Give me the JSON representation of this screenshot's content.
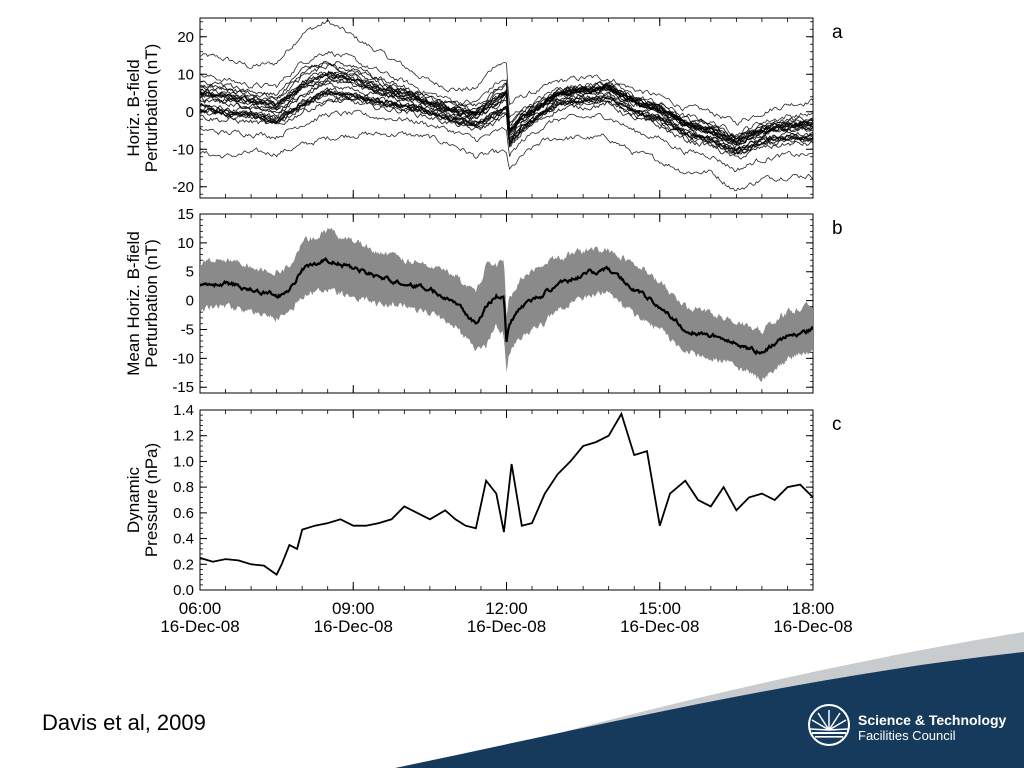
{
  "slide": {
    "citation": "Davis et al, 2009",
    "logo": {
      "line1": "Science & Technology",
      "line2": "Facilities Council",
      "icon": "sunburst-logo-icon"
    },
    "colors": {
      "footer_navy": "#163a5c",
      "footer_gray": "#c9ccce",
      "band_fill": "#8a8a8a",
      "line": "#000000"
    }
  },
  "chart_data": [
    {
      "panel": "a",
      "type": "line",
      "ylabel": [
        "Horiz. B-field",
        "Perturbation (nT)"
      ],
      "xlim": [
        6,
        18
      ],
      "ylim": [
        -23,
        25
      ],
      "yticks": [
        -20,
        -10,
        0,
        10,
        20
      ],
      "x": [
        6.0,
        6.5,
        7.0,
        7.5,
        8.0,
        8.5,
        9.0,
        9.5,
        10.0,
        10.5,
        11.0,
        11.4,
        11.8,
        12.0,
        12.05,
        12.3,
        12.7,
        13.0,
        13.5,
        14.0,
        14.5,
        15.0,
        15.5,
        16.0,
        16.5,
        17.0,
        17.5,
        18.0
      ],
      "series_mean": [
        3,
        2,
        1,
        -1,
        4,
        7,
        6,
        4,
        3,
        1,
        -1,
        -2,
        1,
        3,
        -7,
        -3,
        1,
        4,
        5,
        6,
        2,
        0,
        -4,
        -6,
        -9,
        -6,
        -5,
        -5
      ],
      "envelope_upper": [
        15,
        14,
        12,
        13,
        21,
        24,
        20,
        16,
        12,
        8,
        6,
        6,
        13,
        13,
        2,
        4,
        6,
        8,
        9,
        9,
        6,
        4,
        1,
        0,
        -3,
        0,
        2,
        3
      ],
      "envelope_lower": [
        -11,
        -12,
        -11,
        -11,
        -9,
        -7,
        -6,
        -6,
        -6,
        -7,
        -9,
        -12,
        -11,
        -11,
        -16,
        -12,
        -8,
        -7,
        -7,
        -7,
        -11,
        -13,
        -16,
        -16,
        -21,
        -18,
        -17,
        -17
      ],
      "annotation": "a"
    },
    {
      "panel": "b",
      "type": "area",
      "ylabel": [
        "Mean Horiz. B-field",
        "Perturbation (nT)"
      ],
      "xlim": [
        6,
        18
      ],
      "ylim": [
        -16,
        15
      ],
      "yticks": [
        -15,
        -10,
        -5,
        0,
        5,
        10,
        15
      ],
      "x": [
        6.0,
        6.5,
        7.0,
        7.5,
        7.75,
        8.0,
        8.5,
        9.0,
        9.5,
        10.0,
        10.5,
        11.0,
        11.4,
        11.6,
        11.8,
        11.95,
        12.0,
        12.05,
        12.3,
        12.7,
        13.0,
        13.5,
        14.0,
        14.5,
        15.0,
        15.5,
        16.0,
        16.5,
        17.0,
        17.5,
        18.0
      ],
      "mean": [
        2.5,
        3.0,
        2.0,
        1.0,
        1.5,
        5.5,
        7.0,
        5.5,
        4.0,
        3.0,
        2.0,
        0.0,
        -4.0,
        -1.0,
        1.0,
        0.5,
        -7.0,
        -4.0,
        -1.0,
        1.0,
        3.0,
        4.5,
        5.5,
        2.0,
        -1.0,
        -5.0,
        -6.0,
        -7.5,
        -9.0,
        -6.0,
        -5.0
      ],
      "upper": [
        6.5,
        7.0,
        6.0,
        5.0,
        6.0,
        10.0,
        12.0,
        10.5,
        8.5,
        7.0,
        6.0,
        4.5,
        1.0,
        6.5,
        6.0,
        7.0,
        -2.5,
        0.5,
        4.0,
        6.0,
        7.5,
        8.5,
        9.0,
        6.5,
        3.0,
        -1.0,
        -2.0,
        -4.0,
        -5.0,
        -2.0,
        -1.0
      ],
      "lower": [
        -1.5,
        -1.0,
        -2.0,
        -3.0,
        -2.5,
        1.0,
        2.0,
        0.5,
        -0.5,
        -1.0,
        -2.0,
        -4.5,
        -8.5,
        -8.0,
        -4.0,
        -6.0,
        -12.0,
        -9.0,
        -6.0,
        -4.0,
        -1.5,
        0.5,
        1.5,
        -2.5,
        -5.0,
        -9.0,
        -10.0,
        -11.5,
        -13.5,
        -10.0,
        -9.0
      ],
      "annotation": "b"
    },
    {
      "panel": "c",
      "type": "line",
      "ylabel": [
        "Dynamic",
        "Pressure (nPa)"
      ],
      "xlim": [
        6,
        18
      ],
      "ylim": [
        0,
        1.4
      ],
      "yticks": [
        0.0,
        0.2,
        0.4,
        0.6,
        0.8,
        1.0,
        1.2,
        1.4
      ],
      "x": [
        6.0,
        6.25,
        6.5,
        6.75,
        7.0,
        7.25,
        7.5,
        7.6,
        7.75,
        7.9,
        8.0,
        8.25,
        8.5,
        8.75,
        9.0,
        9.25,
        9.5,
        9.75,
        10.0,
        10.5,
        10.8,
        11.0,
        11.2,
        11.4,
        11.6,
        11.8,
        11.95,
        12.1,
        12.3,
        12.5,
        12.75,
        13.0,
        13.25,
        13.5,
        13.75,
        14.0,
        14.25,
        14.5,
        14.75,
        15.0,
        15.2,
        15.5,
        15.75,
        16.0,
        16.25,
        16.5,
        16.75,
        17.0,
        17.25,
        17.5,
        17.75,
        18.0
      ],
      "values": [
        0.25,
        0.22,
        0.24,
        0.23,
        0.2,
        0.19,
        0.12,
        0.2,
        0.35,
        0.32,
        0.47,
        0.5,
        0.52,
        0.55,
        0.5,
        0.5,
        0.52,
        0.55,
        0.65,
        0.55,
        0.62,
        0.55,
        0.5,
        0.48,
        0.85,
        0.75,
        0.45,
        0.98,
        0.5,
        0.52,
        0.75,
        0.9,
        1.0,
        1.12,
        1.15,
        1.2,
        1.37,
        1.05,
        1.08,
        0.5,
        0.75,
        0.85,
        0.7,
        0.65,
        0.8,
        0.62,
        0.72,
        0.75,
        0.7,
        0.8,
        0.82,
        0.72
      ],
      "annotation": "c"
    }
  ],
  "x_axis": {
    "ticks": [
      6,
      9,
      12,
      15,
      18
    ],
    "tick_labels_time": [
      "06:00",
      "09:00",
      "12:00",
      "15:00",
      "18:00"
    ],
    "tick_labels_date": [
      "16-Dec-08",
      "16-Dec-08",
      "16-Dec-08",
      "16-Dec-08",
      "16-Dec-08"
    ]
  }
}
